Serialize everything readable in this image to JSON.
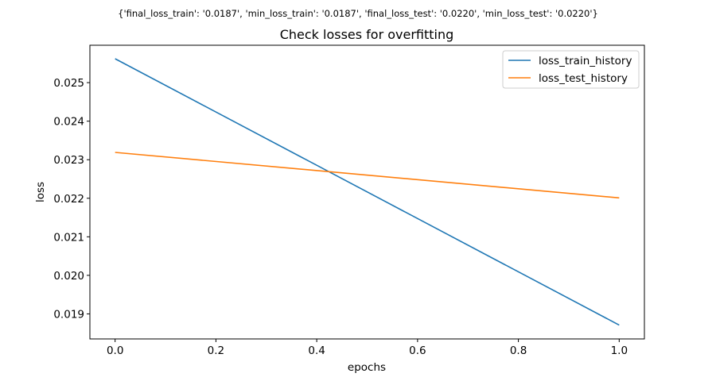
{
  "suptitle": "{'final_loss_train': '0.0187', 'min_loss_train': '0.0187', 'final_loss_test': '0.0220', 'min_loss_test': '0.0220'}",
  "chart_data": {
    "type": "line",
    "title": "Check losses for overfitting",
    "xlabel": "epochs",
    "ylabel": "loss",
    "xlim": [
      -0.05,
      1.05
    ],
    "ylim": [
      0.01835,
      0.02597
    ],
    "x_ticks": [
      0.0,
      0.2,
      0.4,
      0.6,
      0.8,
      1.0
    ],
    "x_tick_labels": [
      "0.0",
      "0.2",
      "0.4",
      "0.6",
      "0.8",
      "1.0"
    ],
    "y_ticks": [
      0.019,
      0.02,
      0.021,
      0.022,
      0.023,
      0.024,
      0.025
    ],
    "y_tick_labels": [
      "0.019",
      "0.020",
      "0.021",
      "0.022",
      "0.023",
      "0.024",
      "0.025"
    ],
    "grid": false,
    "legend_position": "top-right",
    "series": [
      {
        "name": "loss_train_history",
        "color": "#1f77b4",
        "x": [
          0,
          1
        ],
        "y": [
          0.02562,
          0.01871
        ]
      },
      {
        "name": "loss_test_history",
        "color": "#ff7f0e",
        "x": [
          0,
          1
        ],
        "y": [
          0.02319,
          0.02201
        ]
      }
    ]
  }
}
